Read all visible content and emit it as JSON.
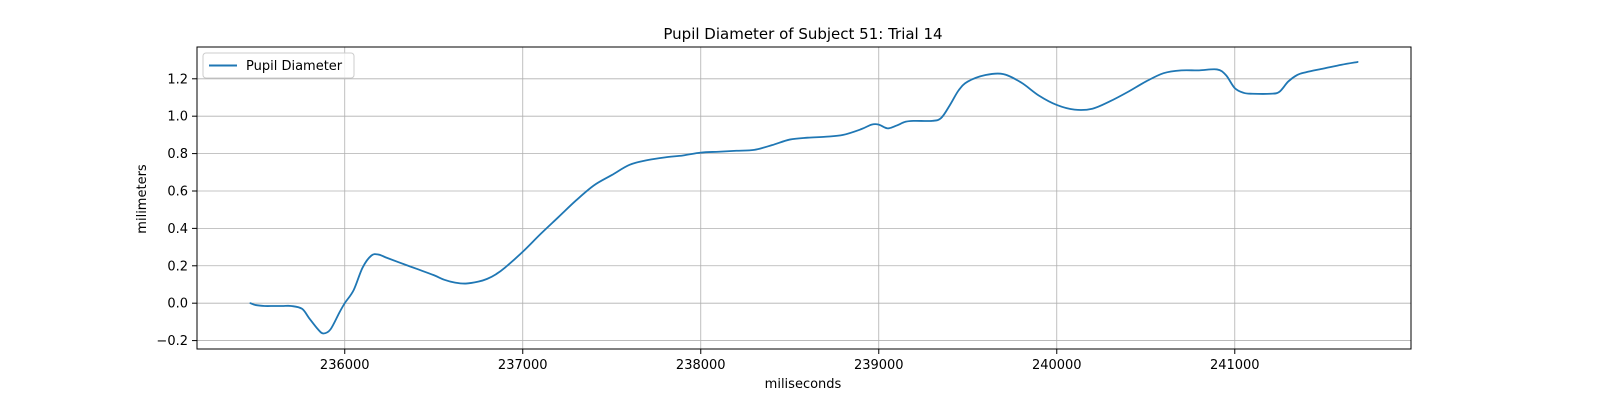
{
  "chart_data": {
    "type": "line",
    "title": "Pupil Diameter of Subject 51: Trial 14",
    "xlabel": "miliseconds",
    "ylabel": "milimeters",
    "xlim": [
      235170,
      241990
    ],
    "ylim": [
      -0.245,
      1.37
    ],
    "xticks": [
      236000,
      237000,
      238000,
      239000,
      240000,
      241000
    ],
    "yticks": [
      -0.2,
      0.0,
      0.2,
      0.4,
      0.6,
      0.8,
      1.0,
      1.2
    ],
    "ytick_labels": [
      "−0.2",
      "0.0",
      "0.2",
      "0.4",
      "0.6",
      "0.8",
      "1.0",
      "1.2"
    ],
    "grid": true,
    "legend_position": "upper-left",
    "colors": {
      "series": "#1f77b4",
      "grid": "#b0b0b0",
      "axes": "#000000"
    },
    "series": [
      {
        "name": "Pupil Diameter",
        "x": [
          235470,
          235500,
          235550,
          235600,
          235650,
          235700,
          235760,
          235800,
          235850,
          235880,
          235920,
          235970,
          236000,
          236050,
          236100,
          236150,
          236190,
          236230,
          236300,
          236400,
          236500,
          236560,
          236620,
          236680,
          236750,
          236800,
          236850,
          236900,
          237000,
          237100,
          237200,
          237300,
          237400,
          237500,
          237600,
          237700,
          237800,
          237900,
          238000,
          238100,
          238200,
          238300,
          238400,
          238500,
          238600,
          238700,
          238800,
          238900,
          238960,
          239000,
          239050,
          239100,
          239150,
          239200,
          239300,
          239350,
          239400,
          239450,
          239500,
          239600,
          239700,
          239800,
          239900,
          240000,
          240100,
          240200,
          240300,
          240400,
          240500,
          240600,
          240700,
          240800,
          240900,
          240950,
          241000,
          241050,
          241100,
          241200,
          241250,
          241300,
          241350,
          241400,
          241500,
          241600,
          241690
        ],
        "y": [
          0.0,
          -0.01,
          -0.015,
          -0.015,
          -0.015,
          -0.015,
          -0.03,
          -0.08,
          -0.14,
          -0.162,
          -0.14,
          -0.05,
          0.0,
          0.07,
          0.19,
          0.255,
          0.26,
          0.245,
          0.22,
          0.185,
          0.15,
          0.125,
          0.11,
          0.105,
          0.115,
          0.13,
          0.155,
          0.19,
          0.275,
          0.37,
          0.46,
          0.55,
          0.63,
          0.685,
          0.74,
          0.765,
          0.78,
          0.79,
          0.805,
          0.81,
          0.815,
          0.82,
          0.845,
          0.875,
          0.885,
          0.89,
          0.9,
          0.93,
          0.955,
          0.955,
          0.935,
          0.95,
          0.97,
          0.975,
          0.975,
          0.99,
          1.06,
          1.14,
          1.185,
          1.22,
          1.225,
          1.18,
          1.11,
          1.06,
          1.035,
          1.04,
          1.08,
          1.13,
          1.185,
          1.23,
          1.245,
          1.245,
          1.25,
          1.22,
          1.15,
          1.125,
          1.12,
          1.12,
          1.13,
          1.185,
          1.22,
          1.235,
          1.255,
          1.275,
          1.29
        ]
      }
    ]
  }
}
